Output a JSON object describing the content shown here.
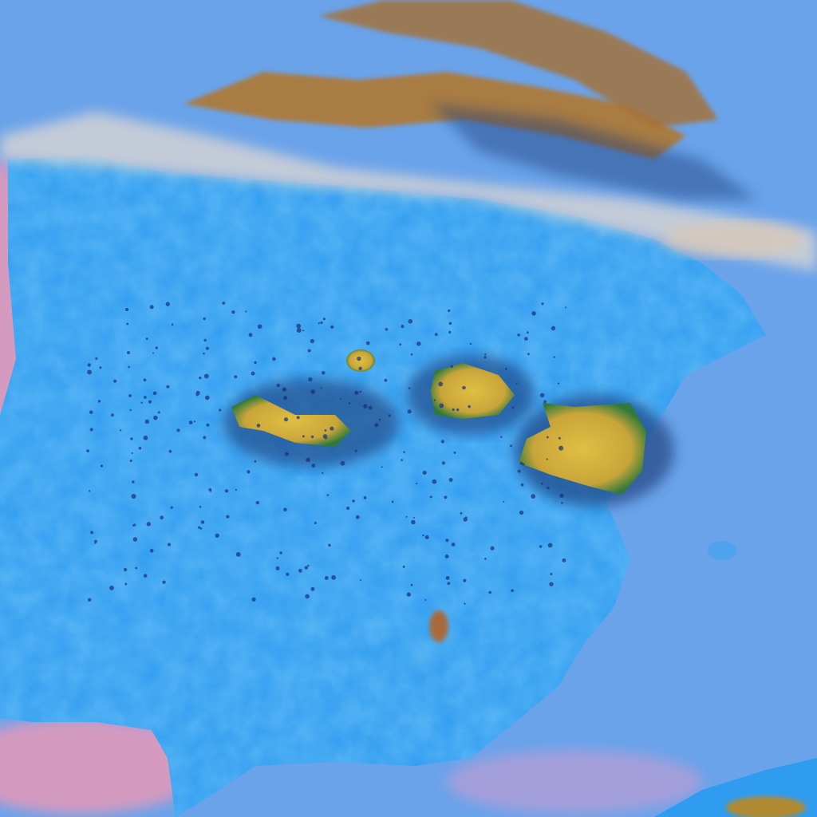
{
  "image": {
    "kind": "false-color satellite view",
    "colors": {
      "sea": "#6aa3ea",
      "sea_pink": "#d49ac0",
      "land": "#2f9cf0",
      "land_light": "#5cb8f4",
      "cloud_high": "#c9a23a",
      "cloud_core": "#d8b840",
      "cloud_shadow": "#1c3d7a",
      "cloud_edge": "#3a8a3a",
      "haze": "#e8dcd0"
    }
  }
}
